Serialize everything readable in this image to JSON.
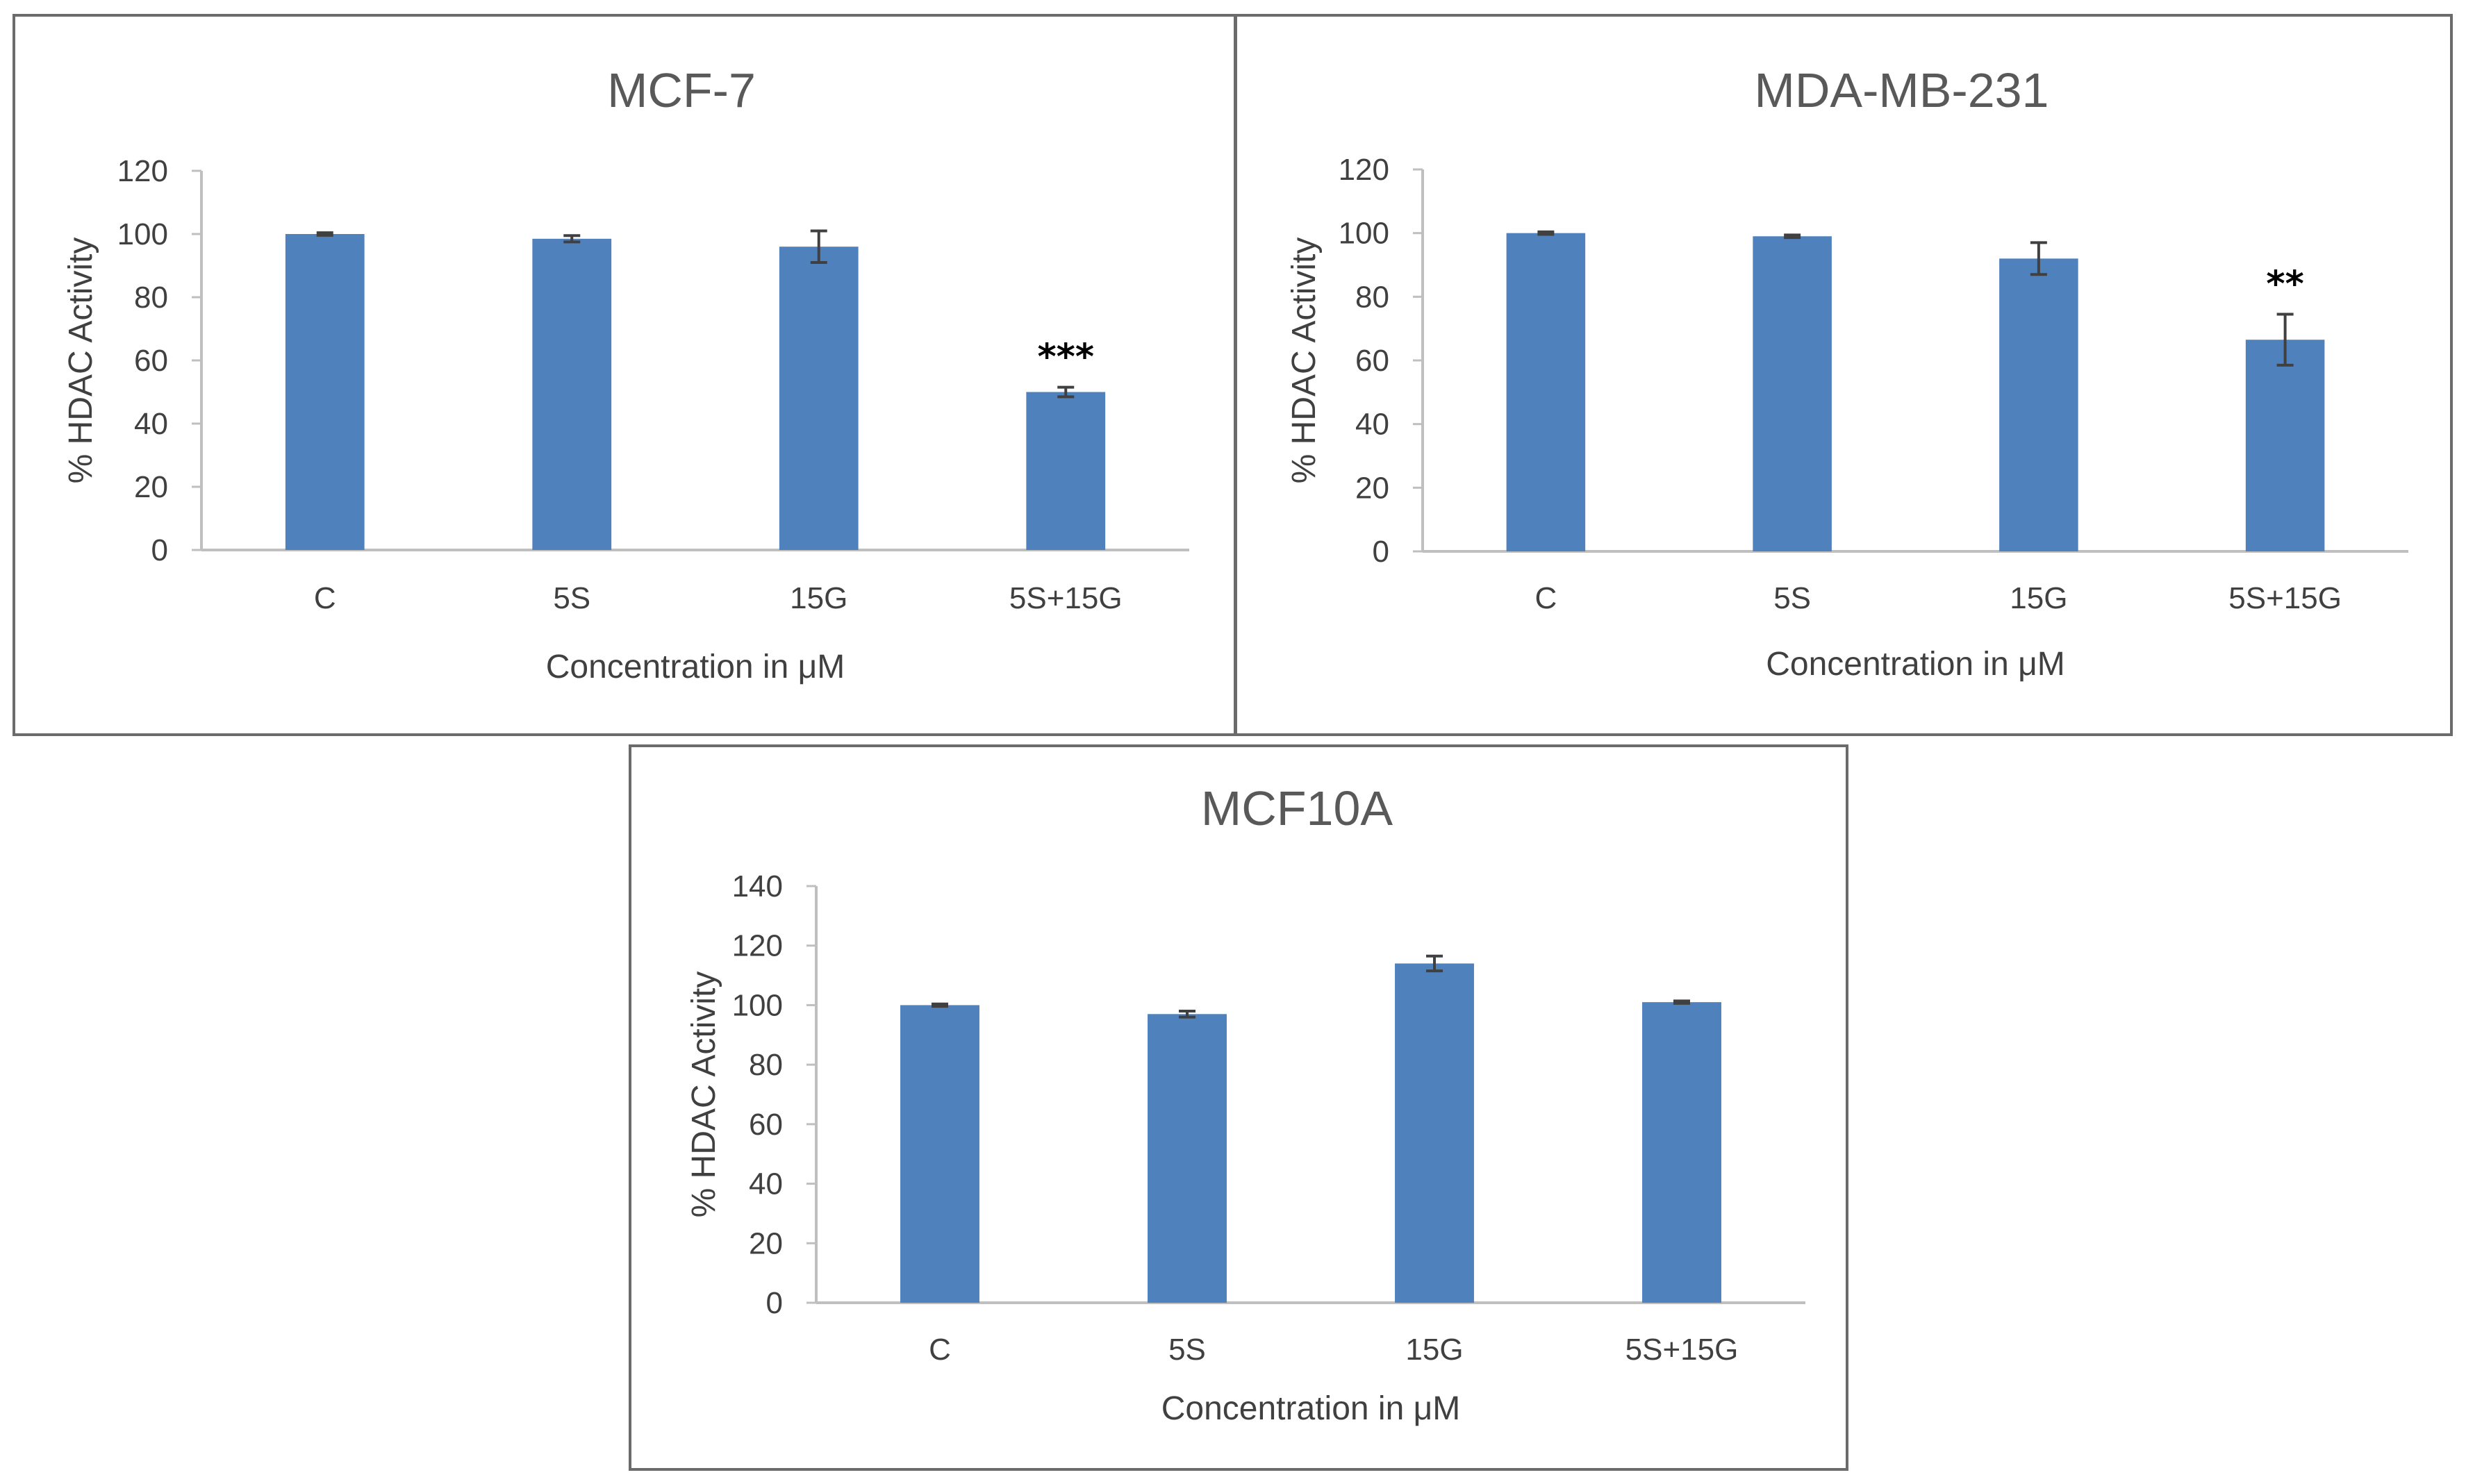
{
  "colors": {
    "bar": "#4f81bd",
    "axis": "#bfbfbf",
    "error": "#404040",
    "text": "#404040",
    "title": "#595959",
    "border": "#6b6b6b"
  },
  "chart_data": [
    {
      "type": "bar",
      "title": "MCF-7",
      "categories": [
        "C",
        "5S",
        "15G",
        "5S+15G"
      ],
      "values": [
        100,
        98.5,
        96,
        50
      ],
      "errors": [
        0.4,
        1,
        5,
        1.5
      ],
      "significance": [
        "",
        "",
        "",
        "***"
      ],
      "xlabel": "Concentration in μM",
      "ylabel": "% HDAC Activity",
      "ylim": [
        0,
        120
      ],
      "yticks": [
        "0",
        "20",
        "40",
        "60",
        "80",
        "100",
        "120"
      ],
      "grid": false
    },
    {
      "type": "bar",
      "title": "MDA-MB-231",
      "categories": [
        "C",
        "5S",
        "15G",
        "5S+15G"
      ],
      "values": [
        100,
        99,
        92,
        66.5
      ],
      "errors": [
        0.4,
        0.4,
        5,
        8
      ],
      "significance": [
        "",
        "",
        "",
        "**"
      ],
      "xlabel": "Concentration in μM",
      "ylabel": "% HDAC Activity",
      "ylim": [
        0,
        120
      ],
      "yticks": [
        "0",
        "20",
        "40",
        "60",
        "80",
        "100",
        "120"
      ],
      "grid": false
    },
    {
      "type": "bar",
      "title": "MCF10A",
      "categories": [
        "C",
        "5S",
        "15G",
        "5S+15G"
      ],
      "values": [
        100,
        97,
        114,
        101
      ],
      "errors": [
        0.4,
        1,
        2.5,
        0.4
      ],
      "significance": [
        "",
        "",
        "",
        ""
      ],
      "xlabel": "Concentration in μM",
      "ylabel": "% HDAC Activity",
      "ylim": [
        0,
        140
      ],
      "yticks": [
        "0",
        "20",
        "40",
        "60",
        "80",
        "100",
        "120",
        "140"
      ],
      "grid": false
    }
  ]
}
